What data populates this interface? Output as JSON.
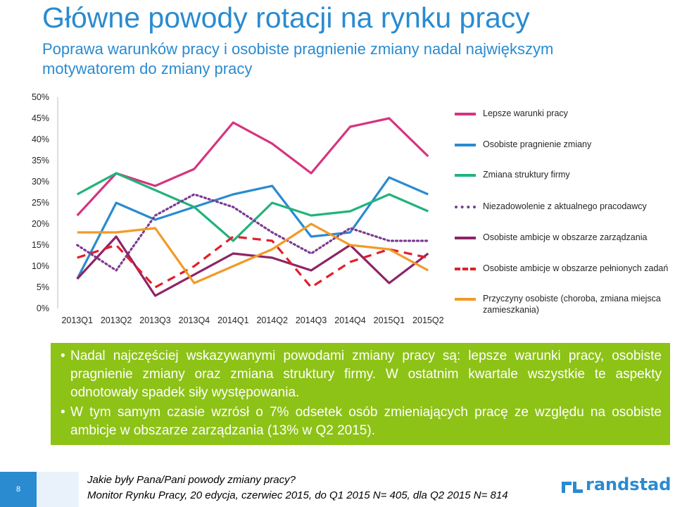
{
  "header": {
    "title": "Główne powody rotacji na rynku pracy",
    "subtitle": "Poprawa warunków pracy i osobiste pragnienie zmiany nadal największym motywatorem do zmiany pracy"
  },
  "chart_data": {
    "type": "line",
    "categories": [
      "2013Q1",
      "2013Q2",
      "2013Q3",
      "2013Q4",
      "2014Q1",
      "2014Q2",
      "2014Q3",
      "2014Q4",
      "2015Q1",
      "2015Q2"
    ],
    "y_ticks": [
      "0%",
      "5%",
      "10%",
      "15%",
      "20%",
      "25%",
      "30%",
      "35%",
      "40%",
      "45%",
      "50%"
    ],
    "ylim": [
      0,
      50
    ],
    "legend_position": "right",
    "series": [
      {
        "name": "Lepsze warunki pracy",
        "color": "#d5347f",
        "style": "solid",
        "values": [
          22,
          32,
          29,
          33,
          44,
          39,
          32,
          43,
          45,
          36
        ]
      },
      {
        "name": "Osobiste pragnienie zmiany",
        "color": "#2a8bd0",
        "style": "solid",
        "values": [
          7,
          25,
          21,
          24,
          27,
          29,
          17,
          18,
          31,
          27
        ]
      },
      {
        "name": "Zmiana struktury firmy",
        "color": "#22b37a",
        "style": "solid",
        "values": [
          27,
          32,
          28,
          24,
          16,
          25,
          22,
          23,
          27,
          23
        ]
      },
      {
        "name": "Niezadowolenie z aktualnego pracodawcy",
        "color": "#7b3a91",
        "style": "dotted",
        "values": [
          15,
          9,
          22,
          27,
          24,
          18,
          13,
          19,
          16,
          16
        ]
      },
      {
        "name": "Osobiste ambicje w obszarze zarządzania",
        "color": "#8e2467",
        "style": "solid",
        "values": [
          7,
          17,
          3,
          8,
          13,
          12,
          9,
          15,
          6,
          13
        ]
      },
      {
        "name": "Osobiste ambicje w obszarze pełnionych zadań",
        "color": "#e0202a",
        "style": "dashed",
        "values": [
          12,
          15,
          5,
          10,
          17,
          16,
          5,
          11,
          14,
          12
        ]
      },
      {
        "name": "Przyczyny osobiste (choroba, zmiana miejsca zamieszkania)",
        "color": "#f29a26",
        "style": "solid",
        "values": [
          18,
          18,
          19,
          6,
          10,
          14,
          20,
          15,
          14,
          9
        ]
      }
    ]
  },
  "note": {
    "bullets": [
      "Nadal najczęściej wskazywanymi powodami zmiany pracy są: lepsze warunki pracy, osobiste pragnienie zmiany oraz zmiana struktury firmy. W ostatnim kwartale wszystkie te aspekty odnotowały spadek siły występowania.",
      "W tym samym czasie wzrósł o 7% odsetek osób zmieniających pracę ze względu na osobiste ambicje w obszarze zarządzania (13% w Q2 2015)."
    ],
    "bullet_char": "•",
    "background": "#8dc217"
  },
  "footer": {
    "page_number": "8",
    "source_line1": "Jakie były Pana/Pani powody zmiany pracy?",
    "source_line2": "Monitor Rynku Pracy, 20 edycja, czerwiec 2015, do Q1 2015 N= 405, dla Q2 2015 N= 814",
    "brand": "randstad",
    "brand_color": "#2a8bd0"
  }
}
